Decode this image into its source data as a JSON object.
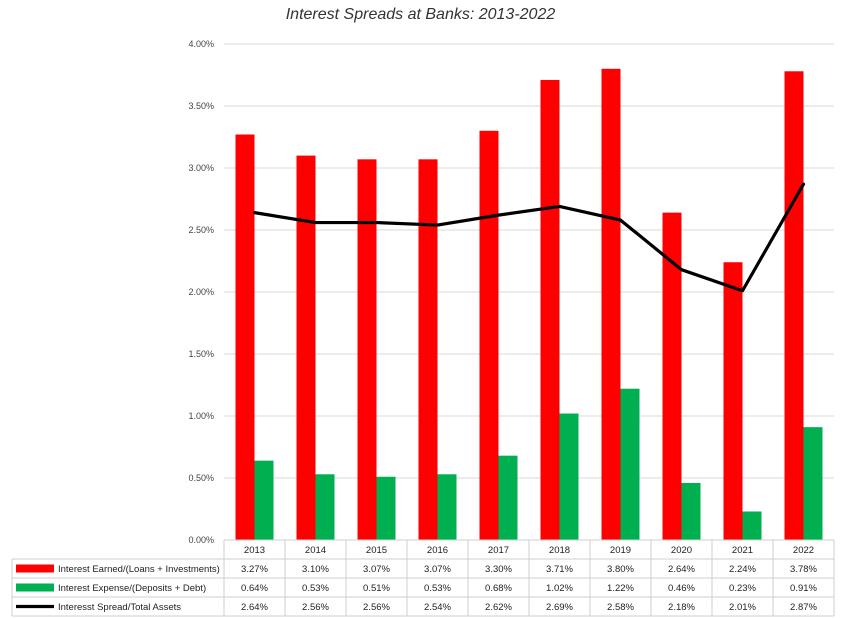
{
  "chart_data": {
    "type": "bar",
    "title": "Interest Spreads at Banks: 2013-2022",
    "categories": [
      "2013",
      "2014",
      "2015",
      "2016",
      "2017",
      "2018",
      "2019",
      "2020",
      "2021",
      "2022"
    ],
    "ylim": [
      0,
      4.0
    ],
    "yticks": [
      "0.00%",
      "0.50%",
      "1.00%",
      "1.50%",
      "2.00%",
      "2.50%",
      "3.00%",
      "3.50%",
      "4.00%"
    ],
    "ytick_values": [
      0,
      0.5,
      1.0,
      1.5,
      2.0,
      2.5,
      3.0,
      3.5,
      4.0
    ],
    "grid": true,
    "legend_placement": "data-table-bottom",
    "series": [
      {
        "name": "Interest Earned/(Loans + Investments)",
        "kind": "bar",
        "color": "#ff0000",
        "values": [
          3.27,
          3.1,
          3.07,
          3.07,
          3.3,
          3.71,
          3.8,
          2.64,
          2.24,
          3.78
        ],
        "labels": [
          "3.27%",
          "3.10%",
          "3.07%",
          "3.07%",
          "3.30%",
          "3.71%",
          "3.80%",
          "2.64%",
          "2.24%",
          "3.78%"
        ]
      },
      {
        "name": "Interest Expense/(Deposits + Debt)",
        "kind": "bar",
        "color": "#00b050",
        "values": [
          0.64,
          0.53,
          0.51,
          0.53,
          0.68,
          1.02,
          1.22,
          0.46,
          0.23,
          0.91
        ],
        "labels": [
          "0.64%",
          "0.53%",
          "0.51%",
          "0.53%",
          "0.68%",
          "1.02%",
          "1.22%",
          "0.46%",
          "0.23%",
          "0.91%"
        ]
      },
      {
        "name": "Interesst Spread/Total Assets",
        "kind": "line",
        "color": "#000000",
        "values": [
          2.64,
          2.56,
          2.56,
          2.54,
          2.62,
          2.69,
          2.58,
          2.18,
          2.01,
          2.87
        ],
        "labels": [
          "2.64%",
          "2.56%",
          "2.56%",
          "2.54%",
          "2.62%",
          "2.69%",
          "2.58%",
          "2.18%",
          "2.01%",
          "2.87%"
        ]
      }
    ]
  }
}
